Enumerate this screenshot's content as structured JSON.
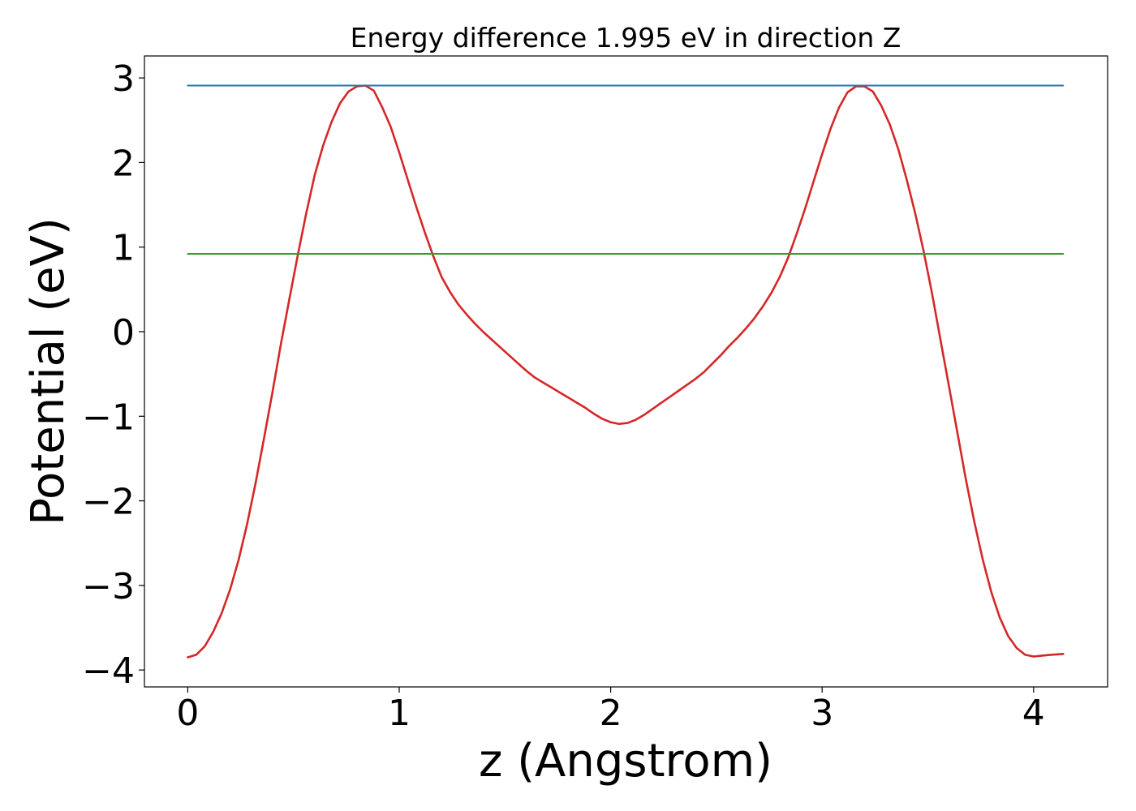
{
  "chart_data": {
    "type": "line",
    "title": "Energy difference 1.995 eV in direction Z",
    "xlabel": "z (Angstrom)",
    "ylabel": "Potential (eV)",
    "xlim": [
      -0.205,
      4.35
    ],
    "ylim": [
      -4.2,
      3.26
    ],
    "xticks": [
      0,
      1,
      2,
      3,
      4
    ],
    "xtick_labels": [
      "0",
      "1",
      "2",
      "3",
      "4"
    ],
    "yticks": [
      -4,
      -3,
      -2,
      -1,
      0,
      1,
      2,
      3
    ],
    "ytick_labels": [
      "−4",
      "−3",
      "−2",
      "−1",
      "0",
      "1",
      "2",
      "3"
    ],
    "grid": false,
    "legend": "none",
    "series": [
      {
        "color": "#d62728",
        "style": "solid",
        "x": [
          0.0,
          0.04,
          0.08,
          0.12,
          0.16,
          0.2,
          0.24,
          0.28,
          0.32,
          0.36,
          0.4,
          0.44,
          0.48,
          0.52,
          0.56,
          0.6,
          0.64,
          0.68,
          0.72,
          0.76,
          0.8,
          0.84,
          0.88,
          0.92,
          0.96,
          1.0,
          1.04,
          1.08,
          1.12,
          1.16,
          1.2,
          1.24,
          1.28,
          1.32,
          1.36,
          1.4,
          1.44,
          1.48,
          1.52,
          1.56,
          1.6,
          1.64,
          1.68,
          1.72,
          1.76,
          1.8,
          1.84,
          1.88,
          1.92,
          1.96,
          2.0,
          2.04,
          2.08,
          2.12,
          2.16,
          2.2,
          2.24,
          2.28,
          2.32,
          2.36,
          2.4,
          2.44,
          2.48,
          2.52,
          2.56,
          2.6,
          2.64,
          2.68,
          2.72,
          2.76,
          2.8,
          2.84,
          2.88,
          2.92,
          2.96,
          3.0,
          3.04,
          3.08,
          3.12,
          3.16,
          3.2,
          3.24,
          3.28,
          3.32,
          3.36,
          3.4,
          3.44,
          3.48,
          3.52,
          3.56,
          3.6,
          3.64,
          3.68,
          3.72,
          3.76,
          3.8,
          3.84,
          3.88,
          3.92,
          3.96,
          4.0,
          4.04,
          4.08,
          4.14
        ],
        "y": [
          -3.85,
          -3.82,
          -3.72,
          -3.55,
          -3.33,
          -3.05,
          -2.7,
          -2.28,
          -1.8,
          -1.27,
          -0.72,
          -0.15,
          0.38,
          0.9,
          1.4,
          1.85,
          2.2,
          2.48,
          2.7,
          2.84,
          2.9,
          2.91,
          2.85,
          2.65,
          2.42,
          2.12,
          1.8,
          1.48,
          1.18,
          0.9,
          0.65,
          0.47,
          0.32,
          0.2,
          0.09,
          -0.01,
          -0.1,
          -0.19,
          -0.28,
          -0.37,
          -0.46,
          -0.54,
          -0.6,
          -0.66,
          -0.72,
          -0.78,
          -0.84,
          -0.9,
          -0.97,
          -1.03,
          -1.07,
          -1.09,
          -1.08,
          -1.04,
          -0.98,
          -0.91,
          -0.84,
          -0.77,
          -0.7,
          -0.63,
          -0.56,
          -0.48,
          -0.38,
          -0.28,
          -0.17,
          -0.07,
          0.04,
          0.16,
          0.3,
          0.46,
          0.65,
          0.88,
          1.16,
          1.46,
          1.78,
          2.1,
          2.4,
          2.65,
          2.83,
          2.9,
          2.9,
          2.84,
          2.67,
          2.45,
          2.16,
          1.8,
          1.4,
          0.95,
          0.45,
          -0.1,
          -0.65,
          -1.2,
          -1.75,
          -2.25,
          -2.7,
          -3.08,
          -3.38,
          -3.6,
          -3.74,
          -3.82,
          -3.84,
          -3.83,
          -3.82,
          -3.81
        ]
      },
      {
        "color": "#1f77b4",
        "style": "solid",
        "x": [
          0.0,
          4.14
        ],
        "y": [
          2.91,
          2.91
        ]
      },
      {
        "color": "#2ca02c",
        "style": "solid",
        "x": [
          0.0,
          4.14
        ],
        "y": [
          0.92,
          0.92
        ]
      }
    ]
  }
}
